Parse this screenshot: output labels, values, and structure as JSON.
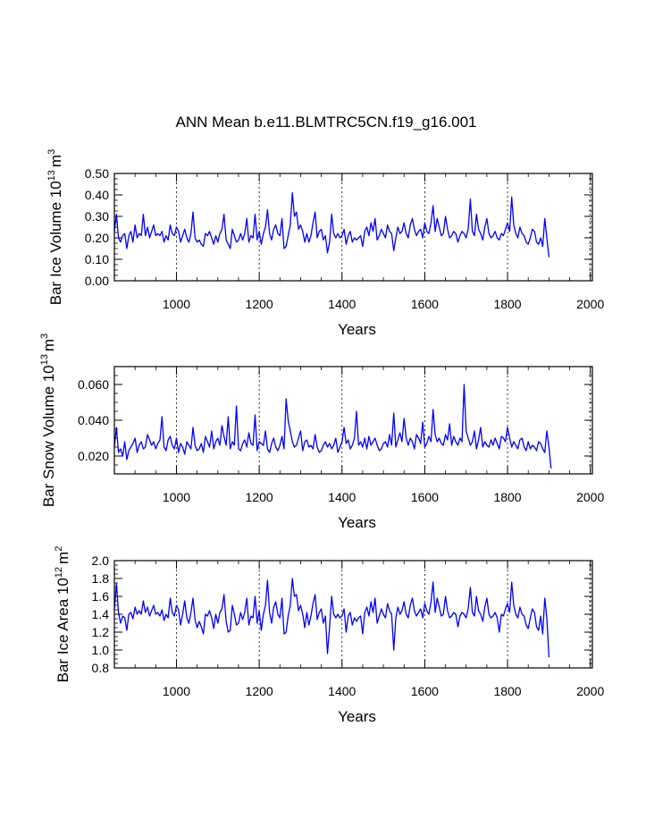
{
  "figure": {
    "title": "ANN Mean b.e11.BLMTRC5CN.f19_g16.001"
  },
  "chart_data": [
    {
      "type": "line",
      "id": "ice-volume",
      "ylabel": "Bar Ice Volume 10",
      "ylabel_exp": "13",
      "ylabel_unit": "m",
      "ylabel_unit_exp": "3",
      "xlabel": "Years",
      "xlim": [
        850,
        2005
      ],
      "ylim": [
        0.0,
        0.5
      ],
      "xticks": [
        1000,
        1200,
        1400,
        1600,
        1800,
        2000
      ],
      "xtick_labels": [
        "1000",
        "1200",
        "1400",
        "1600",
        "1800",
        "2000"
      ],
      "yticks": [
        0.0,
        0.1,
        0.2,
        0.3,
        0.4,
        0.5
      ],
      "ytick_labels": [
        "0.00",
        "0.10",
        "0.20",
        "0.30",
        "0.40",
        "0.50"
      ],
      "grid": "vertical-dashed",
      "series": [
        {
          "name": "Bar Ice Volume",
          "color": "#0000ff",
          "x_start": 850,
          "x_step": 5,
          "values": [
            0.23,
            0.31,
            0.2,
            0.18,
            0.21,
            0.22,
            0.15,
            0.21,
            0.23,
            0.18,
            0.26,
            0.2,
            0.22,
            0.21,
            0.31,
            0.21,
            0.25,
            0.2,
            0.23,
            0.26,
            0.21,
            0.22,
            0.21,
            0.23,
            0.18,
            0.21,
            0.19,
            0.26,
            0.22,
            0.21,
            0.25,
            0.23,
            0.18,
            0.21,
            0.24,
            0.2,
            0.18,
            0.22,
            0.32,
            0.2,
            0.18,
            0.19,
            0.17,
            0.16,
            0.22,
            0.21,
            0.23,
            0.2,
            0.17,
            0.21,
            0.18,
            0.22,
            0.24,
            0.31,
            0.19,
            0.17,
            0.15,
            0.24,
            0.21,
            0.18,
            0.19,
            0.22,
            0.19,
            0.22,
            0.29,
            0.18,
            0.21,
            0.2,
            0.31,
            0.19,
            0.23,
            0.17,
            0.22,
            0.25,
            0.33,
            0.22,
            0.19,
            0.24,
            0.26,
            0.22,
            0.21,
            0.29,
            0.15,
            0.16,
            0.21,
            0.26,
            0.41,
            0.3,
            0.32,
            0.24,
            0.26,
            0.23,
            0.18,
            0.22,
            0.18,
            0.21,
            0.27,
            0.32,
            0.2,
            0.23,
            0.24,
            0.19,
            0.21,
            0.13,
            0.18,
            0.31,
            0.22,
            0.2,
            0.22,
            0.2,
            0.21,
            0.24,
            0.17,
            0.21,
            0.23,
            0.18,
            0.2,
            0.19,
            0.2,
            0.21,
            0.16,
            0.23,
            0.25,
            0.21,
            0.27,
            0.23,
            0.29,
            0.19,
            0.21,
            0.24,
            0.22,
            0.2,
            0.26,
            0.23,
            0.22,
            0.14,
            0.2,
            0.25,
            0.22,
            0.23,
            0.27,
            0.22,
            0.2,
            0.26,
            0.29,
            0.24,
            0.21,
            0.23,
            0.24,
            0.2,
            0.27,
            0.23,
            0.22,
            0.27,
            0.35,
            0.23,
            0.29,
            0.25,
            0.21,
            0.22,
            0.3,
            0.24,
            0.2,
            0.21,
            0.23,
            0.22,
            0.18,
            0.21,
            0.23,
            0.22,
            0.2,
            0.24,
            0.38,
            0.23,
            0.21,
            0.31,
            0.24,
            0.22,
            0.19,
            0.25,
            0.29,
            0.22,
            0.2,
            0.21,
            0.23,
            0.2,
            0.19,
            0.22,
            0.21,
            0.24,
            0.27,
            0.23,
            0.39,
            0.26,
            0.22,
            0.2,
            0.25,
            0.22,
            0.21,
            0.18,
            0.17,
            0.2,
            0.24,
            0.23,
            0.18,
            0.17,
            0.2,
            0.16,
            0.29,
            0.2,
            0.11
          ]
        }
      ]
    },
    {
      "type": "line",
      "id": "snow-volume",
      "ylabel": "Bar Snow Volume 10",
      "ylabel_exp": "13",
      "ylabel_unit": "m",
      "ylabel_unit_exp": "3",
      "xlabel": "Years",
      "xlim": [
        850,
        2005
      ],
      "ylim": [
        0.01,
        0.07
      ],
      "xticks": [
        1000,
        1200,
        1400,
        1600,
        1800,
        2000
      ],
      "xtick_labels": [
        "1000",
        "1200",
        "1400",
        "1600",
        "1800",
        "2000"
      ],
      "yticks": [
        0.02,
        0.04,
        0.06
      ],
      "ytick_labels": [
        "0.020",
        "0.040",
        "0.060"
      ],
      "grid": "vertical-dashed",
      "series": [
        {
          "name": "Bar Snow Volume",
          "color": "#0000ff",
          "x_start": 850,
          "x_step": 5,
          "values": [
            0.025,
            0.036,
            0.022,
            0.024,
            0.02,
            0.028,
            0.018,
            0.023,
            0.025,
            0.027,
            0.03,
            0.022,
            0.026,
            0.028,
            0.024,
            0.025,
            0.032,
            0.029,
            0.026,
            0.028,
            0.024,
            0.027,
            0.029,
            0.042,
            0.025,
            0.023,
            0.029,
            0.031,
            0.026,
            0.024,
            0.03,
            0.022,
            0.027,
            0.025,
            0.021,
            0.028,
            0.026,
            0.024,
            0.036,
            0.026,
            0.023,
            0.024,
            0.027,
            0.022,
            0.031,
            0.028,
            0.025,
            0.034,
            0.024,
            0.028,
            0.03,
            0.026,
            0.037,
            0.031,
            0.026,
            0.042,
            0.024,
            0.028,
            0.026,
            0.048,
            0.024,
            0.023,
            0.027,
            0.029,
            0.025,
            0.033,
            0.027,
            0.026,
            0.043,
            0.023,
            0.028,
            0.027,
            0.026,
            0.034,
            0.024,
            0.022,
            0.027,
            0.03,
            0.025,
            0.023,
            0.026,
            0.031,
            0.024,
            0.052,
            0.04,
            0.034,
            0.028,
            0.025,
            0.026,
            0.03,
            0.034,
            0.023,
            0.028,
            0.029,
            0.025,
            0.026,
            0.024,
            0.032,
            0.025,
            0.022,
            0.023,
            0.026,
            0.028,
            0.025,
            0.027,
            0.024,
            0.026,
            0.03,
            0.022,
            0.025,
            0.028,
            0.036,
            0.027,
            0.029,
            0.024,
            0.026,
            0.03,
            0.045,
            0.026,
            0.028,
            0.025,
            0.03,
            0.024,
            0.031,
            0.026,
            0.028,
            0.03,
            0.026,
            0.023,
            0.024,
            0.027,
            0.028,
            0.025,
            0.032,
            0.026,
            0.044,
            0.025,
            0.029,
            0.033,
            0.028,
            0.041,
            0.03,
            0.026,
            0.03,
            0.028,
            0.024,
            0.032,
            0.03,
            0.027,
            0.039,
            0.025,
            0.027,
            0.031,
            0.028,
            0.046,
            0.032,
            0.028,
            0.03,
            0.027,
            0.026,
            0.032,
            0.029,
            0.038,
            0.026,
            0.031,
            0.028,
            0.026,
            0.03,
            0.028,
            0.06,
            0.034,
            0.03,
            0.026,
            0.028,
            0.034,
            0.024,
            0.029,
            0.036,
            0.025,
            0.028,
            0.026,
            0.025,
            0.029,
            0.026,
            0.03,
            0.027,
            0.024,
            0.031,
            0.03,
            0.028,
            0.036,
            0.03,
            0.025,
            0.028,
            0.026,
            0.024,
            0.029,
            0.03,
            0.025,
            0.023,
            0.028,
            0.024,
            0.026,
            0.025,
            0.023,
            0.028,
            0.027,
            0.024,
            0.022,
            0.034,
            0.025,
            0.013
          ]
        }
      ]
    },
    {
      "type": "line",
      "id": "ice-area",
      "ylabel": "Bar Ice Area 10",
      "ylabel_exp": "12",
      "ylabel_unit": "m",
      "ylabel_unit_exp": "2",
      "xlabel": "Years",
      "xlim": [
        850,
        2005
      ],
      "ylim": [
        0.8,
        2.0
      ],
      "xticks": [
        1000,
        1200,
        1400,
        1600,
        1800,
        2000
      ],
      "xtick_labels": [
        "1000",
        "1200",
        "1400",
        "1600",
        "1800",
        "2000"
      ],
      "yticks": [
        0.8,
        1.0,
        1.2,
        1.4,
        1.6,
        1.8,
        2.0
      ],
      "ytick_labels": [
        "0.8",
        "1.0",
        "1.2",
        "1.4",
        "1.6",
        "1.8",
        "2.0"
      ],
      "grid": "vertical-dashed",
      "series": [
        {
          "name": "Bar Ice Area",
          "color": "#0000ff",
          "x_start": 850,
          "x_step": 5,
          "values": [
            1.45,
            1.74,
            1.42,
            1.3,
            1.38,
            1.36,
            1.22,
            1.4,
            1.42,
            1.35,
            1.48,
            1.4,
            1.44,
            1.4,
            1.55,
            1.42,
            1.48,
            1.38,
            1.44,
            1.5,
            1.4,
            1.42,
            1.38,
            1.45,
            1.33,
            1.4,
            1.36,
            1.58,
            1.42,
            1.38,
            1.5,
            1.45,
            1.28,
            1.4,
            1.55,
            1.36,
            1.3,
            1.42,
            1.58,
            1.34,
            1.25,
            1.32,
            1.26,
            1.18,
            1.4,
            1.38,
            1.44,
            1.36,
            1.24,
            1.4,
            1.3,
            1.42,
            1.46,
            1.62,
            1.32,
            1.2,
            1.22,
            1.5,
            1.4,
            1.28,
            1.3,
            1.42,
            1.34,
            1.42,
            1.58,
            1.28,
            1.38,
            1.36,
            1.6,
            1.3,
            1.44,
            1.22,
            1.4,
            1.5,
            1.78,
            1.42,
            1.3,
            1.48,
            1.54,
            1.4,
            1.36,
            1.58,
            1.18,
            1.2,
            1.38,
            1.5,
            1.8,
            1.6,
            1.62,
            1.44,
            1.5,
            1.4,
            1.25,
            1.42,
            1.28,
            1.38,
            1.52,
            1.62,
            1.34,
            1.42,
            1.46,
            1.3,
            1.38,
            0.96,
            1.26,
            1.6,
            1.4,
            1.36,
            1.4,
            1.36,
            1.38,
            1.46,
            1.2,
            1.38,
            1.42,
            1.28,
            1.36,
            1.32,
            1.36,
            1.38,
            1.18,
            1.42,
            1.48,
            1.38,
            1.54,
            1.42,
            1.58,
            1.3,
            1.38,
            1.46,
            1.4,
            1.36,
            1.52,
            1.44,
            1.4,
            1.0,
            1.36,
            1.48,
            1.4,
            1.44,
            1.54,
            1.4,
            1.36,
            1.5,
            1.58,
            1.44,
            1.38,
            1.42,
            1.46,
            1.36,
            1.52,
            1.44,
            1.4,
            1.54,
            1.76,
            1.42,
            1.58,
            1.48,
            1.38,
            1.4,
            1.6,
            1.44,
            1.36,
            1.38,
            1.42,
            1.4,
            1.26,
            1.38,
            1.42,
            1.4,
            1.36,
            1.46,
            1.7,
            1.42,
            1.38,
            1.6,
            1.44,
            1.4,
            1.32,
            1.48,
            1.58,
            1.4,
            1.36,
            1.38,
            1.42,
            1.36,
            1.2,
            1.4,
            1.38,
            1.46,
            1.52,
            1.42,
            1.76,
            1.5,
            1.4,
            1.36,
            1.48,
            1.4,
            1.38,
            1.28,
            1.24,
            1.36,
            1.46,
            1.42,
            1.26,
            1.22,
            1.38,
            1.18,
            1.58,
            1.36,
            0.92
          ]
        }
      ]
    }
  ]
}
